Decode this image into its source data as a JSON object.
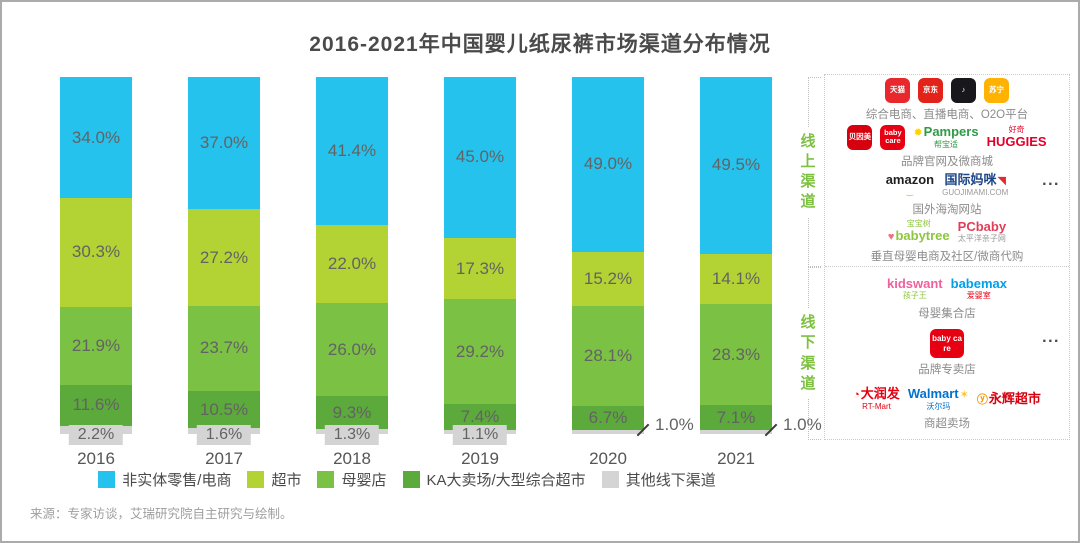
{
  "source": "来源：专家访谈，艾瑞研究院自主研究与绘制。",
  "chart_data": {
    "type": "bar",
    "stacked": true,
    "title": "2016-2021年中国婴儿纸尿裤市场渠道分布情况",
    "categories": [
      "2016",
      "2017",
      "2018",
      "2019",
      "2020",
      "2021"
    ],
    "series": [
      {
        "name": "非实体零售/电商",
        "color": "#26c2ee",
        "values": [
          34.0,
          37.0,
          41.4,
          45.0,
          49.0,
          49.5
        ]
      },
      {
        "name": "超市",
        "color": "#b3d335",
        "values": [
          30.3,
          27.2,
          22.0,
          17.3,
          15.2,
          14.1
        ]
      },
      {
        "name": "母婴店",
        "color": "#7bc143",
        "values": [
          21.9,
          23.7,
          26.0,
          29.2,
          28.1,
          28.3
        ]
      },
      {
        "name": "KA大卖场/大型综合超市",
        "color": "#5ca93c",
        "values": [
          11.6,
          10.5,
          9.3,
          7.4,
          6.7,
          7.1
        ]
      },
      {
        "name": "其他线下渠道",
        "color": "#d4d4d4",
        "values": [
          2.2,
          1.6,
          1.3,
          1.1,
          1.0,
          1.0
        ]
      }
    ],
    "value_suffix": "%",
    "ylim": [
      0,
      100
    ],
    "grid": false,
    "legend_position": "bottom"
  },
  "panel": {
    "more_symbol": "...",
    "sections": [
      {
        "id": "online",
        "bracket_label": "线上渠道",
        "rows": [
          {
            "caption": "综合电商、直播电商、O2O平台",
            "more": false,
            "logos": [
              {
                "name": "tmall-logo",
                "type": "tile",
                "label": "天猫",
                "bg": "#e8282d",
                "fg": "#ffffff"
              },
              {
                "name": "jd-logo",
                "type": "tile",
                "label": "京东",
                "bg": "#e2231a",
                "fg": "#ffffff"
              },
              {
                "name": "douyin-logo",
                "type": "tile",
                "label": "♪",
                "bg": "#17171c",
                "fg": "#ffffff"
              },
              {
                "name": "suning-logo",
                "type": "tile",
                "label": "苏宁",
                "bg": "#ffb300",
                "fg": "#ffffff"
              }
            ]
          },
          {
            "caption": "品牌官网及微商城",
            "more": false,
            "logos": [
              {
                "name": "beingmate-logo",
                "type": "tile",
                "label": "贝因美",
                "bg": "#d7000f",
                "fg": "#ffffff"
              },
              {
                "name": "babycare-logo",
                "type": "tile",
                "label": "baby care",
                "bg": "#e60012",
                "fg": "#ffffff"
              },
              {
                "name": "pampers-logo",
                "type": "word",
                "label": "Pampers",
                "color": "#2e9b45",
                "pre": "✹",
                "pre_color": "#ffd100",
                "sub": "帮宝适",
                "sub_color": "#2e9b45"
              },
              {
                "name": "huggies-logo",
                "type": "word",
                "label": "HUGGIES",
                "color": "#e4002b",
                "sup": "好奇",
                "sup_color": "#e4002b"
              }
            ]
          },
          {
            "caption": "国外海淘网站",
            "more": true,
            "logos": [
              {
                "name": "amazon-logo",
                "type": "word",
                "label": "amazon",
                "color": "#221f1f",
                "sub": "‿",
                "sub_color": "#ff9900"
              },
              {
                "name": "guojimami-logo",
                "type": "word",
                "label": "国际妈咪",
                "color": "#1c4587",
                "post": "◥",
                "post_color": "#e8282d",
                "sub": "GUOJIMAMI.COM",
                "sub_color": "#9a9a9a"
              }
            ]
          },
          {
            "caption": "垂直母婴电商及社区/微商代购",
            "more": false,
            "logos": [
              {
                "name": "babytree-logo",
                "type": "word",
                "label": "babytree",
                "color": "#8dc63f",
                "pre": "♥",
                "pre_color": "#f26d7d",
                "sup": "宝宝树",
                "sup_color": "#8dc63f"
              },
              {
                "name": "pcbaby-logo",
                "type": "word",
                "label": "PCbaby",
                "color": "#e23e57",
                "sub": "太平洋亲子网",
                "sub_color": "#9a9a9a"
              }
            ]
          }
        ]
      },
      {
        "id": "offline",
        "bracket_label": "线下渠道",
        "rows": [
          {
            "caption": "母婴集合店",
            "more": false,
            "logos": [
              {
                "name": "kidswant-logo",
                "type": "word",
                "label": "kidswant",
                "color": "#f0609e",
                "sub": "孩子王",
                "sub_color": "#8dc63f"
              },
              {
                "name": "babemax-logo",
                "type": "word",
                "label": "babemax",
                "color": "#00a0e9",
                "sub": "爱婴室",
                "sub_color": "#e60012"
              }
            ]
          },
          {
            "caption": "品牌专卖店",
            "more": true,
            "logos": [
              {
                "name": "babycare-logo",
                "type": "tile",
                "label": "baby care",
                "bg": "#e60012",
                "fg": "#ffffff",
                "big": true
              }
            ]
          },
          {
            "caption": "商超卖场",
            "more": false,
            "logos": [
              {
                "name": "rtmart-logo",
                "type": "word",
                "label": "大润发",
                "color": "#e60012",
                "pre": "◔",
                "pre_color": "#e60012",
                "sub": "RT-Mart",
                "sub_color": "#e60012"
              },
              {
                "name": "walmart-logo",
                "type": "word",
                "label": "Walmart",
                "color": "#0071ce",
                "post": "✶",
                "post_color": "#ffc220",
                "sub": "沃尔玛",
                "sub_color": "#0071ce"
              },
              {
                "name": "yonghui-logo",
                "type": "word",
                "label": "永辉超市",
                "color": "#d7000f",
                "pre": "ⓨ",
                "pre_color": "#f39800"
              }
            ]
          }
        ]
      }
    ]
  }
}
